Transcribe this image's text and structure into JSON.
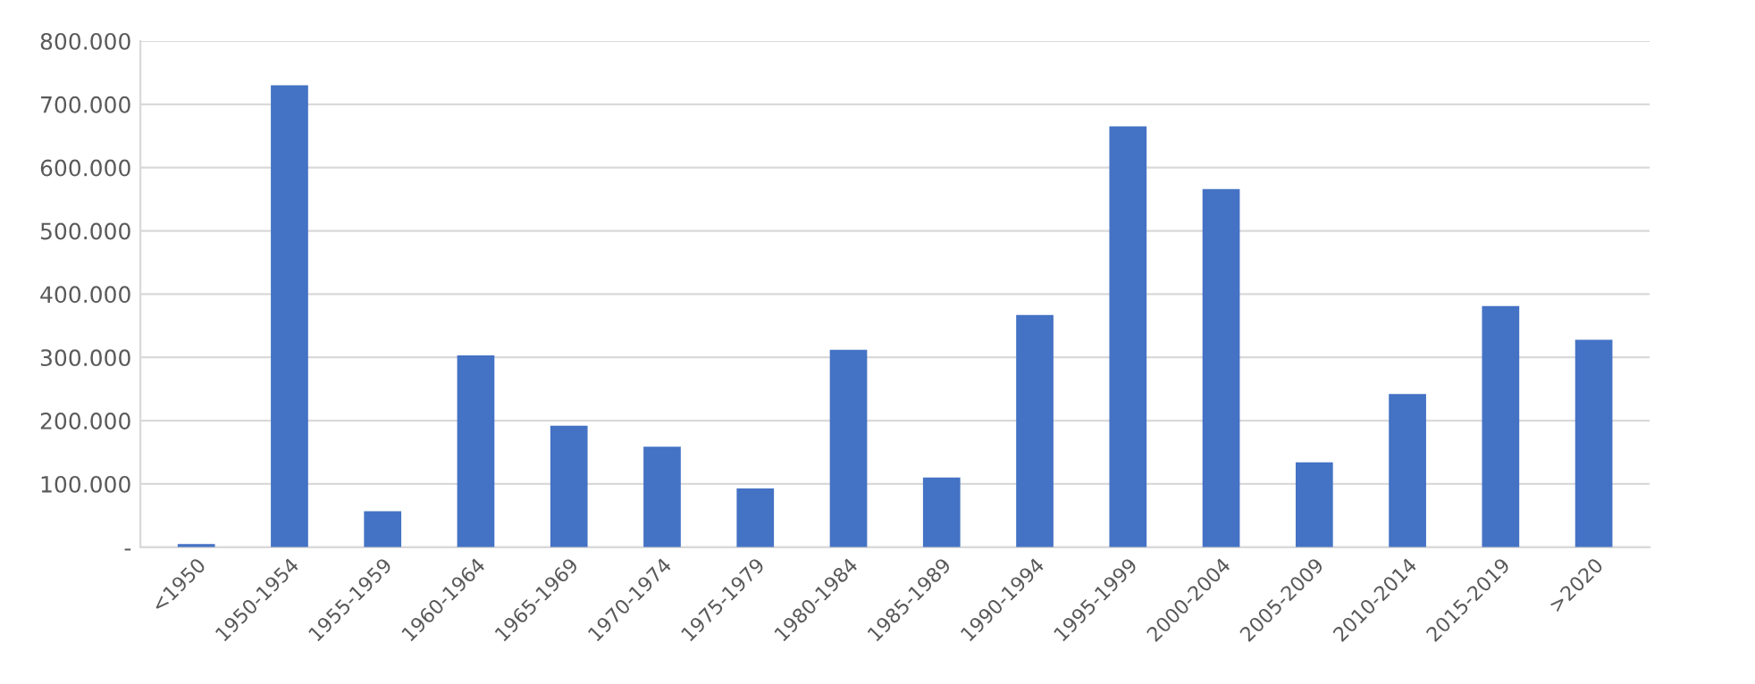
{
  "chart_data": {
    "type": "bar",
    "categories": [
      "<1950",
      "1950-1954",
      "1955-1959",
      "1960-1964",
      "1965-1969",
      "1970-1974",
      "1975-1979",
      "1980-1984",
      "1985-1989",
      "1990-1994",
      "1995-1999",
      "2000-2004",
      "2005-2009",
      "2010-2014",
      "2015-2019",
      ">2020"
    ],
    "values": [
      5000,
      730000,
      57000,
      303000,
      192000,
      159000,
      93000,
      312000,
      110000,
      367000,
      665000,
      566000,
      134000,
      242000,
      381000,
      328000
    ],
    "color": "#4472c4",
    "ylim": [
      0,
      800000
    ],
    "yticks": [
      {
        "value": 0,
        "label": "-"
      },
      {
        "value": 100000,
        "label": "100.000"
      },
      {
        "value": 200000,
        "label": "200.000"
      },
      {
        "value": 300000,
        "label": "300.000"
      },
      {
        "value": 400000,
        "label": "400.000"
      },
      {
        "value": 500000,
        "label": "500.000"
      },
      {
        "value": 600000,
        "label": "600.000"
      },
      {
        "value": 700000,
        "label": "700.000"
      },
      {
        "value": 800000,
        "label": "800.000"
      }
    ],
    "grid": "y"
  }
}
